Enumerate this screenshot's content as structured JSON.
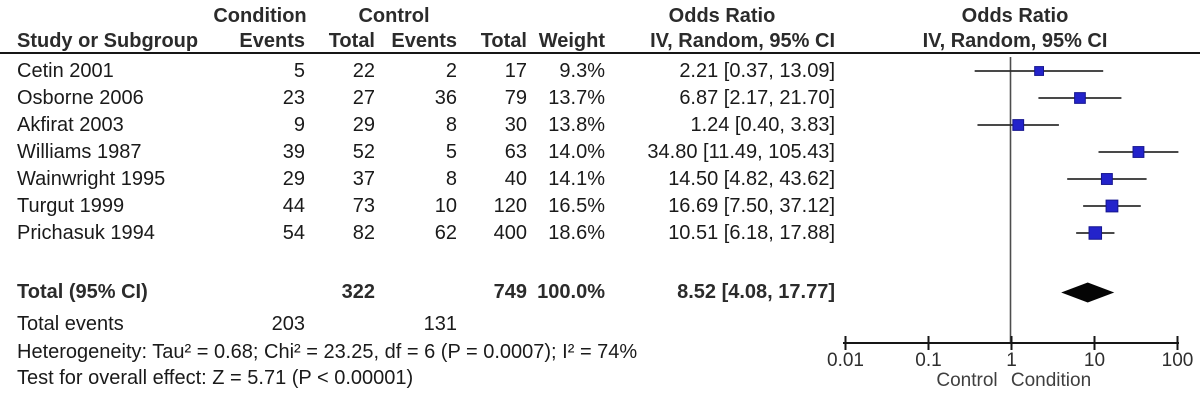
{
  "header": {
    "group1_label": "Condition",
    "group2_label": "Control",
    "or_col_title": "Odds Ratio",
    "or_col_subtitle": "IV, Random, 95% CI",
    "plot_title": "Odds Ratio",
    "plot_subtitle": "IV, Random, 95% CI",
    "study_col": "Study or Subgroup",
    "events_col": "Events",
    "total_col": "Total",
    "events2_col": "Events",
    "total2_col": "Total",
    "weight_col": "Weight"
  },
  "studies": [
    {
      "name": "Cetin 2001",
      "cond_events": "5",
      "cond_total": "22",
      "ctrl_events": "2",
      "ctrl_total": "17",
      "weight": "9.3%",
      "or_ci": "2.21 [0.37, 13.09]"
    },
    {
      "name": "Osborne 2006",
      "cond_events": "23",
      "cond_total": "27",
      "ctrl_events": "36",
      "ctrl_total": "79",
      "weight": "13.7%",
      "or_ci": "6.87 [2.17, 21.70]"
    },
    {
      "name": "Akfirat 2003",
      "cond_events": "9",
      "cond_total": "29",
      "ctrl_events": "8",
      "ctrl_total": "30",
      "weight": "13.8%",
      "or_ci": "1.24 [0.40, 3.83]"
    },
    {
      "name": "Williams 1987",
      "cond_events": "39",
      "cond_total": "52",
      "ctrl_events": "5",
      "ctrl_total": "63",
      "weight": "14.0%",
      "or_ci": "34.80 [11.49, 105.43]"
    },
    {
      "name": "Wainwright 1995",
      "cond_events": "29",
      "cond_total": "37",
      "ctrl_events": "8",
      "ctrl_total": "40",
      "weight": "14.1%",
      "or_ci": "14.50 [4.82, 43.62]"
    },
    {
      "name": "Turgut 1999",
      "cond_events": "44",
      "cond_total": "73",
      "ctrl_events": "10",
      "ctrl_total": "120",
      "weight": "16.5%",
      "or_ci": "16.69 [7.50, 37.12]"
    },
    {
      "name": "Prichasuk 1994",
      "cond_events": "54",
      "cond_total": "82",
      "ctrl_events": "62",
      "ctrl_total": "400",
      "weight": "18.6%",
      "or_ci": "10.51 [6.18, 17.88]"
    }
  ],
  "totals": {
    "label": "Total (95% CI)",
    "cond_total": "322",
    "ctrl_total": "749",
    "weight": "100.0%",
    "or_ci": "8.52 [4.08, 17.77]"
  },
  "total_events": {
    "label": "Total events",
    "cond": "203",
    "ctrl": "131"
  },
  "footer": {
    "heterogeneity": "Heterogeneity: Tau² = 0.68; Chi² = 23.25, df = 6 (P = 0.0007); I² = 74%",
    "overall_effect": "Test for overall effect: Z = 5.71 (P < 0.00001)"
  },
  "axis": {
    "ticks": [
      {
        "value": 0.01,
        "label": "0.01"
      },
      {
        "value": 0.1,
        "label": "0.1"
      },
      {
        "value": 1,
        "label": "1"
      },
      {
        "value": 10,
        "label": "10"
      },
      {
        "value": 100,
        "label": "100"
      }
    ],
    "left_label": "Control",
    "right_label": "Condition"
  },
  "colors": {
    "square_fill": "#2323cb",
    "square_edge": "#15158f",
    "ci_line": "#2f2f2f",
    "axis_line": "#161616",
    "ref_line": "#4d4d4d",
    "diamond_fill": "#050505"
  },
  "chart_data": {
    "type": "forest",
    "title": "Odds Ratio — IV, Random, 95% CI",
    "x_scale": "log10",
    "xlim": [
      0.01,
      100
    ],
    "x_ticks": [
      0.01,
      0.1,
      1,
      10,
      100
    ],
    "x_label_left": "Control",
    "x_label_right": "Condition",
    "ref_line": 1,
    "studies": [
      {
        "name": "Cetin 2001",
        "or": 2.21,
        "ci_low": 0.37,
        "ci_high": 13.09,
        "weight_pct": 9.3
      },
      {
        "name": "Osborne 2006",
        "or": 6.87,
        "ci_low": 2.17,
        "ci_high": 21.7,
        "weight_pct": 13.7
      },
      {
        "name": "Akfirat 2003",
        "or": 1.24,
        "ci_low": 0.4,
        "ci_high": 3.83,
        "weight_pct": 13.8
      },
      {
        "name": "Williams 1987",
        "or": 34.8,
        "ci_low": 11.49,
        "ci_high": 105.43,
        "weight_pct": 14.0
      },
      {
        "name": "Wainwright 1995",
        "or": 14.5,
        "ci_low": 4.82,
        "ci_high": 43.62,
        "weight_pct": 14.1
      },
      {
        "name": "Turgut 1999",
        "or": 16.69,
        "ci_low": 7.5,
        "ci_high": 37.12,
        "weight_pct": 16.5
      },
      {
        "name": "Prichasuk 1994",
        "or": 10.51,
        "ci_low": 6.18,
        "ci_high": 17.88,
        "weight_pct": 18.6
      }
    ],
    "total": {
      "name": "Total (95% CI)",
      "or": 8.52,
      "ci_low": 4.08,
      "ci_high": 17.77,
      "weight_pct": 100.0,
      "heterogeneity": {
        "tau2": 0.68,
        "chi2": 23.25,
        "df": 6,
        "p": 0.0007,
        "i2_pct": 74
      },
      "overall_effect": {
        "z": 5.71,
        "p": "< 0.00001"
      }
    }
  }
}
